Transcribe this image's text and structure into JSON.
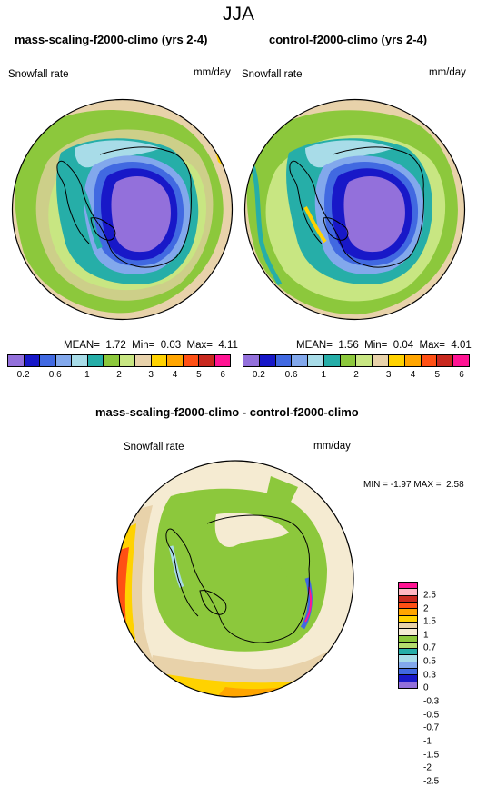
{
  "figure": {
    "title": "JJA"
  },
  "panels": [
    {
      "title": "mass-scaling-f2000-climo (yrs 2-4)",
      "variable": "Snowfall rate",
      "units": "mm/day",
      "stats": {
        "mean_label": "MEAN=",
        "mean": "1.72",
        "min_label": "Min=",
        "min": "0.03",
        "max_label": "Max=",
        "max": "4.11"
      }
    },
    {
      "title": "control-f2000-climo (yrs 2-4)",
      "variable": "Snowfall rate",
      "units": "mm/day",
      "stats": {
        "mean_label": "MEAN=",
        "mean": "1.56",
        "min_label": "Min=",
        "min": "0.04",
        "max_label": "Max=",
        "max": "4.01"
      }
    },
    {
      "title": "mass-scaling-f2000-climo - control-f2000-climo",
      "variable": "Snowfall rate",
      "units": "mm/day",
      "stats": {
        "min_label": "MIN =",
        "min": "-1.97",
        "max_label": "MAX =",
        "max": "2.58"
      }
    }
  ],
  "colorbar_top": {
    "colors": [
      "#9370db",
      "#1818c8",
      "#4169e1",
      "#82a8ec",
      "#a8dce8",
      "#26aea8",
      "#8cc83c",
      "#c8e682",
      "#e8d2aa",
      "#ffd200",
      "#ffa500",
      "#ff5014",
      "#c8281e",
      "#ff1493"
    ],
    "labels": [
      "0.2",
      "0.6",
      "1",
      "2",
      "3",
      "4",
      "5",
      "6"
    ]
  },
  "colorbar_diff": {
    "colors": [
      "#ff1493",
      "#ffb6c1",
      "#c8281e",
      "#ff5014",
      "#ffa500",
      "#ffd200",
      "#e8d2aa",
      "#f5ebd2",
      "#8cc83c",
      "#b4dc6e",
      "#26aea8",
      "#a8dce8",
      "#82a8ec",
      "#4169e1",
      "#1818c8",
      "#9370db"
    ],
    "labels": [
      "2.5",
      "2",
      "1.5",
      "1",
      "0.7",
      "0.5",
      "0.3",
      "0",
      "-0.3",
      "-0.5",
      "-0.7",
      "-1",
      "-1.5",
      "-2",
      "-2.5"
    ]
  }
}
